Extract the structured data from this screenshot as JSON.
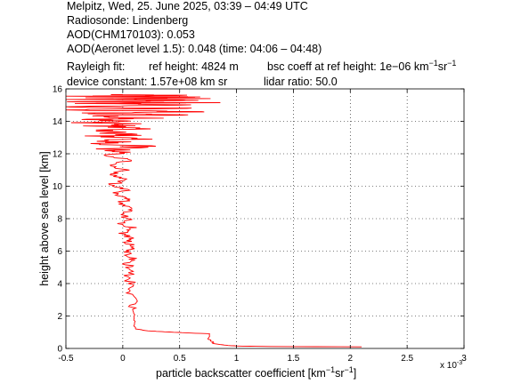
{
  "header": {
    "line1": "Melpitz, Wed, 25. June 2025, 03:39 – 04:49 UTC",
    "line2": "Radiosonde: Lindenberg",
    "line3": "AOD(CHM170103): 0.053",
    "line4": "AOD(Aeronet level 1.5): 0.048   (time: 04:06 – 04:48)",
    "line5_a": "Rayleigh fit:",
    "line5_b": "ref height: 4824 m",
    "line5_c": "bsc coeff at ref height: 1e−06 km",
    "line5_c_sup1": "−1",
    "line5_c_sr": "sr",
    "line5_c_sup2": "−1",
    "line6_a": "device constant: 1.57e+08 km sr",
    "line6_b": "lidar ratio: 50.0"
  },
  "chart_data": {
    "type": "line",
    "xlabel": "particle backscatter coefficient [km",
    "xlabel_sup1": "−1",
    "xlabel_mid": "sr",
    "xlabel_sup2": "−1",
    "xlabel_end": "]",
    "ylabel": "height above sea level [km]",
    "x_multiplier": "x 10",
    "x_multiplier_exp": "-3",
    "xlim": [
      -0.5,
      3
    ],
    "ylim": [
      0,
      16
    ],
    "xticks": [
      "-0.5",
      "0",
      "0.5",
      "1",
      "1.5",
      "2",
      "2.5",
      "3"
    ],
    "yticks": [
      "0",
      "2",
      "4",
      "6",
      "8",
      "10",
      "12",
      "14",
      "16"
    ],
    "grid": true,
    "series_color": "#ff0000",
    "series": [
      {
        "x": [
          2.1,
          1.3,
          1.05,
          0.95,
          0.88,
          0.8,
          0.78,
          0.75,
          0.77,
          0.6,
          0.45,
          0.3,
          0.2,
          0.12,
          0.1,
          0.1,
          0.09,
          0.08,
          0.08,
          0.07,
          0.05,
          0.06,
          0.04,
          0.1,
          0.03,
          0.12,
          0.05,
          0.1,
          -0.02,
          0.1,
          0.0,
          0.05,
          -0.03,
          0.08,
          -0.05,
          0.05,
          -0.08,
          0.03,
          -0.1,
          0.05,
          -0.12,
          0.02,
          -0.1,
          0.08,
          -0.15,
          0.05,
          -0.1,
          0.1,
          -0.2,
          0.05,
          -0.15,
          0.1,
          -0.25,
          0.08,
          -0.2,
          0.15,
          -0.3,
          0.12,
          -0.25,
          0.3,
          -0.35,
          0.4,
          -0.3,
          0.65,
          -0.4,
          0.55,
          -0.45,
          0.6,
          -0.35,
          0.8,
          -0.45,
          0.75,
          -0.4,
          0.8,
          -0.3,
          0.78,
          -0.45,
          0.6,
          0.0
        ],
        "y": [
          0.1,
          0.12,
          0.14,
          0.17,
          0.22,
          0.3,
          0.45,
          0.6,
          0.9,
          0.95,
          1.0,
          1.05,
          1.1,
          1.2,
          1.5,
          2.0,
          2.5,
          3.0,
          3.5,
          4.0,
          4.5,
          5.0,
          5.3,
          5.6,
          5.9,
          6.2,
          6.5,
          6.8,
          7.1,
          7.4,
          7.7,
          8.0,
          8.3,
          8.6,
          8.9,
          9.2,
          9.5,
          9.8,
          10.1,
          10.4,
          10.7,
          11.0,
          11.3,
          11.6,
          11.9,
          12.1,
          12.3,
          12.5,
          12.7,
          12.9,
          13.1,
          13.2,
          13.4,
          13.5,
          13.7,
          13.8,
          13.9,
          14.0,
          14.1,
          14.2,
          14.3,
          14.4,
          14.5,
          14.6,
          14.7,
          14.8,
          14.9,
          15.0,
          15.1,
          15.15,
          15.2,
          15.3,
          15.35,
          15.4,
          15.45,
          15.5,
          15.55,
          15.6,
          15.65
        ]
      }
    ]
  }
}
